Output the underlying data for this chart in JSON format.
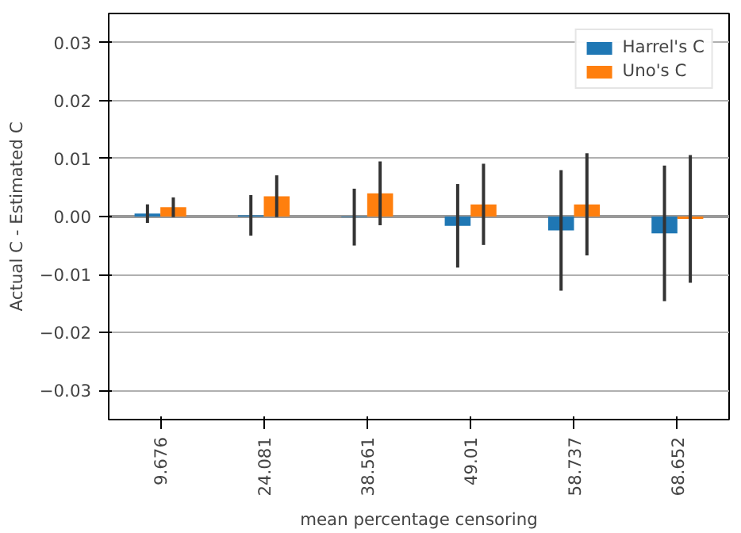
{
  "chart_data": {
    "type": "bar",
    "xlabel": "mean percentage censoring",
    "ylabel": "Actual C - Estimated C",
    "categories": [
      "9.676",
      "24.081",
      "38.561",
      "49.01",
      "58.737",
      "68.652"
    ],
    "series": [
      {
        "name": "Harrel's C",
        "color": "#1f77b4",
        "values": [
          0.0005,
          0.0002,
          -0.0001,
          -0.0016,
          -0.0024,
          -0.0029
        ],
        "errors": [
          0.0016,
          0.0035,
          0.0049,
          0.0072,
          0.0104,
          0.0117
        ]
      },
      {
        "name": "Uno's C",
        "color": "#ff7f0e",
        "values": [
          0.0016,
          0.0035,
          0.004,
          0.0021,
          0.0021,
          -0.0004
        ],
        "errors": [
          0.0017,
          0.0036,
          0.0055,
          0.007,
          0.0088,
          0.011
        ]
      }
    ],
    "ylim": [
      -0.035,
      0.035
    ],
    "yticks": [
      {
        "value": -0.03,
        "label": "−0.03"
      },
      {
        "value": -0.02,
        "label": "−0.02"
      },
      {
        "value": -0.01,
        "label": "−0.01"
      },
      {
        "value": 0,
        "label": "0.00"
      },
      {
        "value": 0.01,
        "label": "0.01"
      },
      {
        "value": 0.02,
        "label": "0.02"
      },
      {
        "value": 0.03,
        "label": "0.03"
      }
    ],
    "ref_lines": [
      {
        "axis": "y",
        "value": 0,
        "color": "#999999"
      }
    ],
    "grid": "y",
    "legend": "top right"
  }
}
